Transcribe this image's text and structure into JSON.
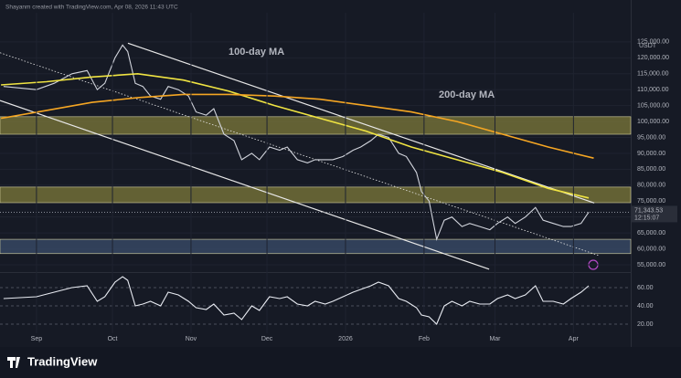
{
  "header": "Shayanm created with TradingView.com, Apr 08, 2026 11:43 UTC",
  "currency": "USDT",
  "logo": "TradingView",
  "last_price_label": "71,343.53",
  "countdown": "12:15:07",
  "chart_data": [
    {
      "type": "line",
      "xlim": [
        -14.4,
        234.6
      ],
      "ylim": [
        52700,
        133000
      ],
      "yticks": [
        {
          "value": 125000,
          "label": "125,000.00"
        },
        {
          "value": 120000,
          "label": "120,000.00"
        },
        {
          "value": 115000,
          "label": "115,000.00"
        },
        {
          "value": 110000,
          "label": "110,000.00"
        },
        {
          "value": 105000,
          "label": "105,000.00"
        },
        {
          "value": 100000,
          "label": "100,000.00"
        },
        {
          "value": 95000,
          "label": "95,000.00"
        },
        {
          "value": 90000,
          "label": "90,000.00"
        },
        {
          "value": 85000,
          "label": "85,000.00"
        },
        {
          "value": 80000,
          "label": "80,000.00"
        },
        {
          "value": 75000,
          "label": "75,000.00"
        },
        {
          "value": 70000,
          "label": "70,000.00"
        },
        {
          "value": 65000,
          "label": "65,000.00"
        },
        {
          "value": 60000,
          "label": "60,000.00"
        },
        {
          "value": 55000,
          "label": "55,000.00"
        }
      ],
      "grid": true,
      "zones": [
        {
          "range": [
            96000,
            101500
          ],
          "color": "#7d7a3a"
        },
        {
          "range": [
            74500,
            79400
          ],
          "color": "#7d7a3a"
        },
        {
          "range": [
            58500,
            63000
          ],
          "color": "#3b4d6b"
        }
      ],
      "trendlines": [
        {
          "x": [
            36.1,
            220.2
          ],
          "y": [
            124600,
            74400
          ],
          "dashed": false
        },
        {
          "x": [
            -14.4,
            178.7
          ],
          "y": [
            106600,
            53600
          ],
          "dashed": false
        },
        {
          "x": [
            -14.4,
            222
          ],
          "y": [
            121600,
            57900
          ],
          "dashed": true
        }
      ],
      "series": [
        {
          "color": "#d1d4dc",
          "x": [
            -13,
            0,
            7,
            14,
            20,
            24,
            27,
            31,
            34,
            36,
            39,
            42,
            45,
            49,
            52,
            56,
            60,
            63,
            67,
            70,
            74,
            78,
            81,
            85,
            88,
            92,
            96,
            99,
            103,
            107,
            110,
            114,
            117,
            121,
            125,
            128,
            132,
            135,
            139,
            143,
            146,
            150,
            152,
            155,
            158,
            161,
            164,
            168,
            171,
            175,
            179,
            182,
            186,
            189,
            193,
            197,
            200,
            204,
            208,
            211,
            215,
            218
          ],
          "values": [
            111000,
            110000,
            112000,
            115000,
            116000,
            110000,
            112000,
            120000,
            124000,
            122000,
            112000,
            111000,
            108000,
            107000,
            111000,
            110000,
            108000,
            103000,
            102000,
            104000,
            96000,
            94000,
            88000,
            90000,
            88000,
            92000,
            91000,
            92000,
            88000,
            87000,
            88000,
            88000,
            88000,
            89000,
            91000,
            92000,
            94000,
            96000,
            95000,
            90000,
            89000,
            84000,
            78000,
            75000,
            63000,
            69000,
            70000,
            67000,
            68000,
            67000,
            66000,
            68000,
            70000,
            68000,
            70000,
            73000,
            69000,
            68000,
            67000,
            67000,
            68000,
            71500
          ]
        },
        {
          "name": "100-day MA",
          "color": "#f0e442",
          "x": [
            -14,
            4,
            22,
            40,
            58,
            76,
            94,
            112,
            130,
            148,
            166,
            184,
            202,
            218
          ],
          "values": [
            111500,
            112500,
            114000,
            115000,
            113000,
            109500,
            105000,
            101000,
            97000,
            92000,
            88000,
            84000,
            79000,
            76000
          ]
        },
        {
          "name": "200-day MA",
          "color": "#f5a623",
          "x": [
            -14,
            4,
            22,
            40,
            58,
            76,
            94,
            112,
            130,
            148,
            166,
            184,
            202,
            220
          ],
          "values": [
            101000,
            103500,
            106000,
            107500,
            108500,
            108500,
            108000,
            107000,
            105000,
            103000,
            100000,
            96000,
            92000,
            88500
          ]
        }
      ]
    },
    {
      "type": "line",
      "xlim": [
        -14.4,
        234.6
      ],
      "ylim": [
        13,
        75
      ],
      "yticks": [
        {
          "value": 60,
          "label": "60.00"
        },
        {
          "value": 40,
          "label": "40.00"
        },
        {
          "value": 20,
          "label": "20.00"
        }
      ],
      "xticks": [
        {
          "value": 0,
          "label": "Sep"
        },
        {
          "value": 30,
          "label": "Oct"
        },
        {
          "value": 61,
          "label": "Nov"
        },
        {
          "value": 91,
          "label": "Dec"
        },
        {
          "value": 122,
          "label": "2026"
        },
        {
          "value": 153,
          "label": "Feb"
        },
        {
          "value": 181,
          "label": "Mar"
        },
        {
          "value": 212,
          "label": "Apr"
        }
      ],
      "series": [
        {
          "color": "#e8ebf2",
          "x": [
            -13,
            0,
            7,
            14,
            20,
            24,
            27,
            31,
            34,
            36,
            39,
            42,
            45,
            49,
            52,
            56,
            60,
            63,
            67,
            70,
            74,
            78,
            81,
            85,
            88,
            92,
            96,
            99,
            103,
            107,
            110,
            114,
            117,
            121,
            125,
            128,
            132,
            135,
            139,
            143,
            146,
            150,
            152,
            155,
            158,
            161,
            164,
            168,
            171,
            175,
            179,
            182,
            186,
            189,
            193,
            197,
            200,
            204,
            208,
            211,
            215,
            218
          ],
          "values": [
            48,
            50,
            55,
            60,
            62,
            45,
            50,
            66,
            72,
            68,
            40,
            42,
            45,
            40,
            55,
            52,
            45,
            38,
            36,
            42,
            30,
            32,
            25,
            40,
            35,
            50,
            48,
            50,
            42,
            40,
            45,
            42,
            45,
            50,
            55,
            58,
            62,
            66,
            62,
            48,
            45,
            38,
            30,
            28,
            20,
            40,
            45,
            40,
            45,
            42,
            42,
            48,
            52,
            48,
            52,
            62,
            45,
            45,
            42,
            48,
            55,
            62
          ]
        }
      ]
    }
  ]
}
